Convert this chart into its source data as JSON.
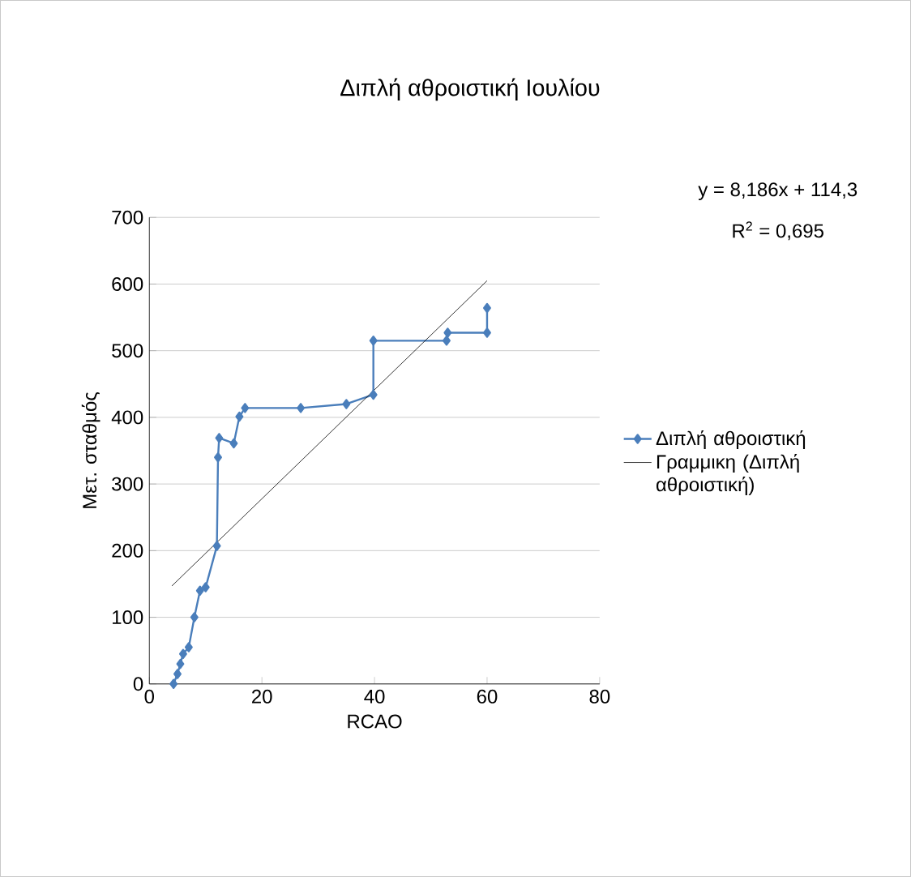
{
  "chart_data": {
    "type": "line",
    "title": "Διπλή αθροιστική Ιουλίου",
    "xlabel": "RCAO",
    "ylabel": "Μετ. σταθμός",
    "xlim": [
      0,
      80
    ],
    "xticks": [
      0,
      20,
      40,
      60,
      80
    ],
    "ylim": [
      0,
      700
    ],
    "yticks": [
      0,
      100,
      200,
      300,
      400,
      500,
      600,
      700
    ],
    "grid": "y",
    "legend": "right",
    "marker": "diamond",
    "line_style": "solid",
    "annotations": [
      "y = 8,186x + 114,3",
      "R$^{2}$ = 0,695"
    ],
    "series": [
      {
        "name": "Διπλή αθροιστική",
        "color": "#4a7ebb",
        "x": [
          4.3,
          5,
          5.5,
          6,
          7,
          8,
          9,
          10,
          12,
          12.2,
          12.4,
          15,
          16,
          17,
          26.9,
          35,
          39.8,
          39.8,
          52.8,
          53,
          60,
          60
        ],
        "values": [
          0,
          15,
          30,
          45,
          55,
          100,
          140,
          145,
          207,
          340,
          369,
          361,
          401,
          414,
          414,
          420,
          434,
          515,
          515,
          527,
          527,
          564
        ]
      },
      {
        "name": "Γραμμικη (Διπλή αθροιστική)",
        "type": "line",
        "color": "#000000",
        "marker": "none",
        "x": [
          4,
          60
        ],
        "values": [
          147,
          605
        ]
      }
    ]
  }
}
